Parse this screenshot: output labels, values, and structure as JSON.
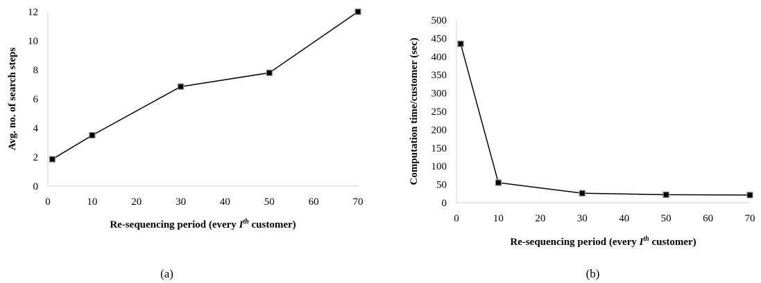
{
  "chart_data": [
    {
      "type": "line",
      "xlabel": {
        "prefix": "Re-sequencing period (every ",
        "var": "I",
        "sup": "th",
        "suffix": " customer)"
      },
      "ylabel": "Avg. no. of search steps",
      "x_ticks": [
        0,
        10,
        20,
        30,
        40,
        50,
        60,
        70
      ],
      "y_ticks": [
        0,
        2,
        4,
        6,
        8,
        10,
        12
      ],
      "xlim": [
        0,
        70
      ],
      "ylim": [
        0,
        12
      ],
      "grid": false,
      "legend": "none",
      "series": [
        {
          "x": [
            1,
            10,
            30,
            50,
            70
          ],
          "y": [
            1.85,
            3.5,
            6.85,
            7.8,
            12.0
          ]
        }
      ],
      "caption": "(a)"
    },
    {
      "type": "line",
      "xlabel": {
        "prefix": "Re-sequencing period (every ",
        "var": "I",
        "sup": "th",
        "suffix": " customer)"
      },
      "ylabel": "Computation time/customer (sec)",
      "x_ticks": [
        0,
        10,
        20,
        30,
        40,
        50,
        60,
        70
      ],
      "y_ticks": [
        0,
        50,
        100,
        150,
        200,
        250,
        300,
        350,
        400,
        450,
        500
      ],
      "xlim": [
        0,
        70
      ],
      "ylim": [
        0,
        500
      ],
      "grid": false,
      "legend": "none",
      "series": [
        {
          "x": [
            1,
            10,
            30,
            50,
            70
          ],
          "y": [
            435,
            55,
            26,
            22,
            21
          ]
        }
      ],
      "caption": "(b)"
    }
  ]
}
